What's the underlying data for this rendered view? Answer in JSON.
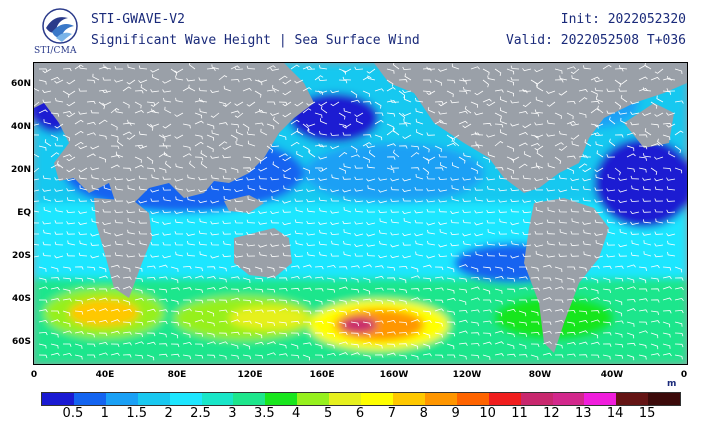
{
  "header": {
    "logo_caption": "STI/CMA",
    "title_line1": "STI-GWAVE-V2",
    "title_line2": "Significant Wave Height | Sea Surface Wind",
    "init": "Init: 2022052320",
    "valid": "Valid: 2022052508 T+036"
  },
  "map": {
    "lat_labels": [
      "60N",
      "40N",
      "20N",
      "EQ",
      "20S",
      "40S",
      "60S"
    ],
    "lon_labels": [
      "0",
      "40E",
      "80E",
      "120E",
      "160E",
      "160W",
      "120W",
      "80W",
      "40W",
      "0"
    ],
    "unit": "m"
  },
  "colorbar": {
    "labels": [
      "0.5",
      "1",
      "1.5",
      "2",
      "2.5",
      "3",
      "3.5",
      "4",
      "5",
      "6",
      "7",
      "8",
      "9",
      "10",
      "11",
      "12",
      "13",
      "14",
      "15"
    ],
    "colors": [
      "#1a1ad2",
      "#1464f0",
      "#1aa0f5",
      "#19c8f0",
      "#1ee6ff",
      "#19e6c8",
      "#1ee68c",
      "#19e61e",
      "#96f01e",
      "#e6f01e",
      "#ffff00",
      "#ffc800",
      "#ff9600",
      "#ff6400",
      "#f01e1e",
      "#c8286e",
      "#d2288c",
      "#f01edc",
      "#641414",
      "#3c0a0a"
    ]
  },
  "legend_colors": {
    "land": "#9aa0a8",
    "wind_barb": "#ffffff",
    "title_text": "#1a2a7a"
  }
}
